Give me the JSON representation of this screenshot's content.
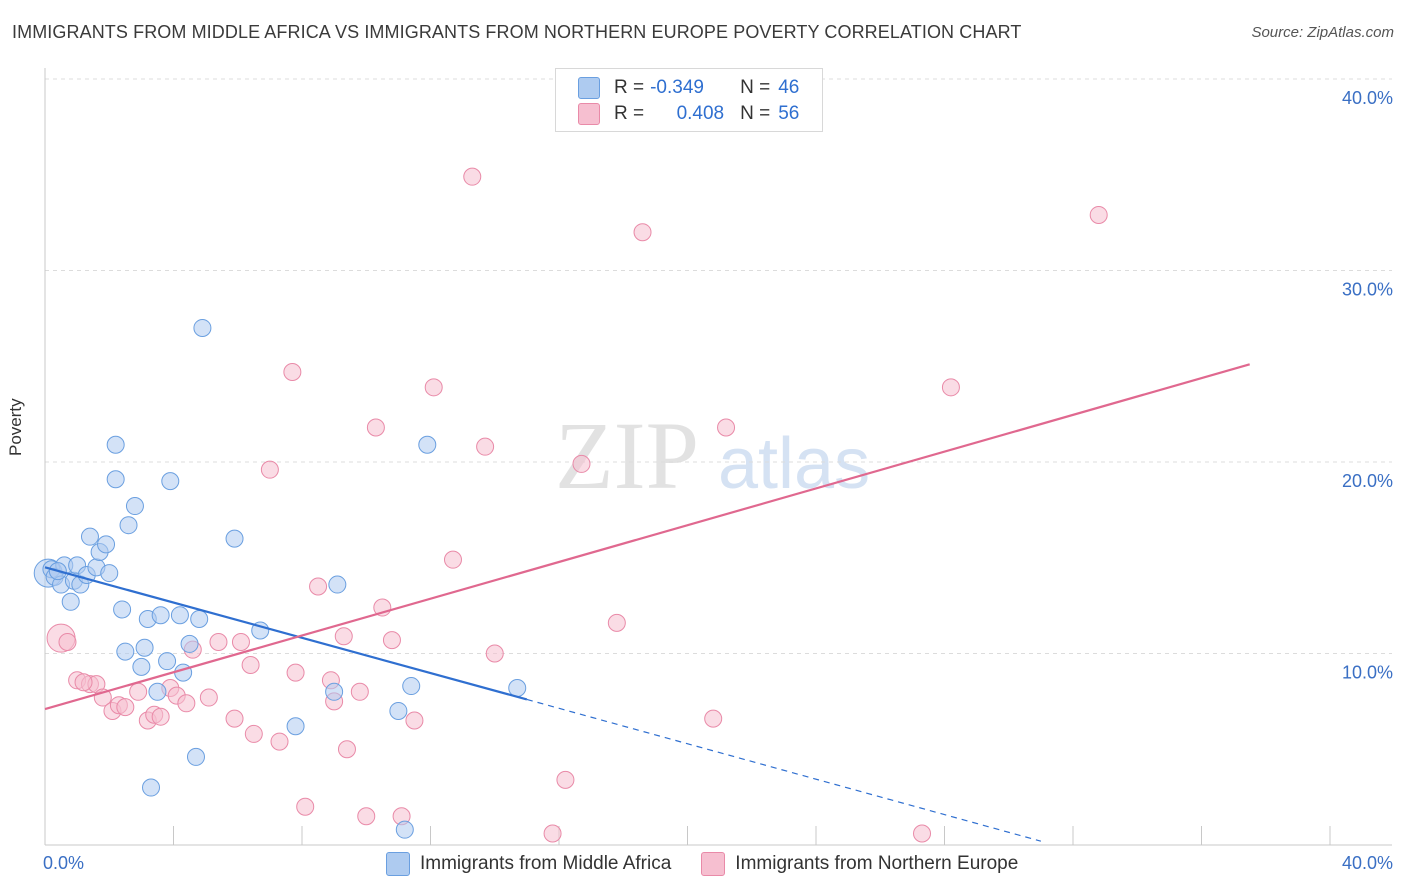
{
  "header": {
    "title": "IMMIGRANTS FROM MIDDLE AFRICA VS IMMIGRANTS FROM NORTHERN EUROPE POVERTY CORRELATION CHART",
    "source": "Source: ZipAtlas.com"
  },
  "watermark": {
    "zip": "ZIP",
    "atlas": "atlas"
  },
  "stats": {
    "r_label": "R =",
    "n_label": "N =",
    "rows": [
      {
        "r": "-0.349",
        "n": "46"
      },
      {
        "r": "0.408",
        "n": "56"
      }
    ]
  },
  "colors": {
    "blue_fill": "#aecbf0",
    "blue_stroke": "#6a9fe0",
    "blue_line": "#2f6fd0",
    "pink_fill": "#f6bfd0",
    "pink_stroke": "#e98aa8",
    "pink_line": "#e0688f",
    "axis_text": "#3a6fc4"
  },
  "chart_data": {
    "type": "scatter",
    "title": "IMMIGRANTS FROM MIDDLE AFRICA VS IMMIGRANTS FROM NORTHERN EUROPE POVERTY CORRELATION CHART",
    "xlabel": "",
    "ylabel": "Poverty",
    "xlim": [
      0,
      40
    ],
    "ylim": [
      0,
      40
    ],
    "x_tick_labels": [
      "0.0%",
      "40.0%"
    ],
    "y_ticks": [
      {
        "value": 10,
        "label": "10.0%"
      },
      {
        "value": 20,
        "label": "20.0%"
      },
      {
        "value": 30,
        "label": "30.0%"
      },
      {
        "value": 40,
        "label": "40.0%"
      }
    ],
    "legend": "bottom-center",
    "series": [
      {
        "name": "Immigrants from Middle Africa",
        "color": "#6a9fe0",
        "trend": {
          "x0": 0,
          "y0": 14.5,
          "x1": 15.0,
          "y1": 7.6,
          "dashed_to_x": 31.0,
          "dashed_to_y": 0.2
        },
        "points": [
          [
            0.1,
            14.2,
            3
          ],
          [
            0.2,
            14.4,
            1
          ],
          [
            0.3,
            14.0,
            1
          ],
          [
            0.5,
            13.6,
            1
          ],
          [
            0.6,
            14.6,
            1
          ],
          [
            0.8,
            12.7,
            1
          ],
          [
            0.9,
            13.8,
            1
          ],
          [
            1.0,
            14.6,
            1
          ],
          [
            1.1,
            13.6,
            1
          ],
          [
            1.3,
            14.1,
            1
          ],
          [
            1.4,
            16.1,
            1
          ],
          [
            1.6,
            14.5,
            1
          ],
          [
            1.7,
            15.3,
            1
          ],
          [
            1.9,
            15.7,
            1
          ],
          [
            2.0,
            14.2,
            1
          ],
          [
            2.2,
            20.9,
            1
          ],
          [
            2.2,
            19.1,
            1
          ],
          [
            2.4,
            12.3,
            1
          ],
          [
            2.5,
            10.1,
            1
          ],
          [
            2.6,
            16.7,
            1
          ],
          [
            2.8,
            17.7,
            1
          ],
          [
            3.0,
            9.3,
            1
          ],
          [
            3.1,
            10.3,
            1
          ],
          [
            3.2,
            11.8,
            1
          ],
          [
            3.3,
            3.0,
            1
          ],
          [
            3.5,
            8.0,
            1
          ],
          [
            3.6,
            12.0,
            1
          ],
          [
            3.8,
            9.6,
            1
          ],
          [
            3.9,
            19.0,
            1
          ],
          [
            4.2,
            12.0,
            1
          ],
          [
            4.3,
            9.0,
            1
          ],
          [
            4.5,
            10.5,
            1
          ],
          [
            4.7,
            4.6,
            1
          ],
          [
            4.8,
            11.8,
            1
          ],
          [
            4.9,
            27.0,
            1
          ],
          [
            5.9,
            16.0,
            1
          ],
          [
            6.7,
            11.2,
            1
          ],
          [
            7.8,
            6.2,
            1
          ],
          [
            9.0,
            8.0,
            1
          ],
          [
            9.1,
            13.6,
            1
          ],
          [
            11.0,
            7.0,
            1
          ],
          [
            11.2,
            0.8,
            1
          ],
          [
            11.4,
            8.3,
            1
          ],
          [
            11.9,
            20.9,
            1
          ],
          [
            14.7,
            8.2,
            1
          ],
          [
            0.4,
            14.3,
            1
          ]
        ]
      },
      {
        "name": "Immigrants from Northern Europe",
        "color": "#e98aa8",
        "trend": {
          "x0": 0,
          "y0": 7.1,
          "x1": 37.5,
          "y1": 25.1
        },
        "points": [
          [
            0.5,
            10.8,
            3
          ],
          [
            0.7,
            10.6,
            1
          ],
          [
            1.0,
            8.6,
            1
          ],
          [
            1.4,
            8.4,
            1
          ],
          [
            1.6,
            8.4,
            1
          ],
          [
            1.8,
            7.7,
            1
          ],
          [
            2.1,
            7.0,
            1
          ],
          [
            2.3,
            7.3,
            1
          ],
          [
            2.5,
            7.2,
            1
          ],
          [
            2.9,
            8.0,
            1
          ],
          [
            3.2,
            6.5,
            1
          ],
          [
            3.4,
            6.8,
            1
          ],
          [
            3.6,
            6.7,
            1
          ],
          [
            3.9,
            8.2,
            1
          ],
          [
            4.1,
            7.8,
            1
          ],
          [
            4.4,
            7.4,
            1
          ],
          [
            4.6,
            10.2,
            1
          ],
          [
            5.1,
            7.7,
            1
          ],
          [
            5.4,
            10.6,
            1
          ],
          [
            5.9,
            6.6,
            1
          ],
          [
            6.1,
            10.6,
            1
          ],
          [
            6.4,
            9.4,
            1
          ],
          [
            6.5,
            5.8,
            1
          ],
          [
            7.0,
            19.6,
            1
          ],
          [
            7.3,
            5.4,
            1
          ],
          [
            7.7,
            24.7,
            1
          ],
          [
            7.8,
            9.0,
            1
          ],
          [
            8.1,
            2.0,
            1
          ],
          [
            8.5,
            13.5,
            1
          ],
          [
            8.9,
            8.6,
            1
          ],
          [
            9.0,
            7.5,
            1
          ],
          [
            9.3,
            10.9,
            1
          ],
          [
            9.4,
            5.0,
            1
          ],
          [
            9.8,
            8.0,
            1
          ],
          [
            10.0,
            1.5,
            1
          ],
          [
            10.3,
            21.8,
            1
          ],
          [
            10.5,
            12.4,
            1
          ],
          [
            10.8,
            10.7,
            1
          ],
          [
            11.1,
            1.5,
            1
          ],
          [
            11.5,
            6.5,
            1
          ],
          [
            12.1,
            23.9,
            1
          ],
          [
            12.7,
            14.9,
            1
          ],
          [
            13.3,
            34.9,
            1
          ],
          [
            13.7,
            20.8,
            1
          ],
          [
            14.0,
            10.0,
            1
          ],
          [
            15.8,
            0.6,
            1
          ],
          [
            16.2,
            3.4,
            1
          ],
          [
            16.7,
            19.9,
            1
          ],
          [
            17.8,
            11.6,
            1
          ],
          [
            18.6,
            32.0,
            1
          ],
          [
            20.8,
            6.6,
            1
          ],
          [
            21.2,
            21.8,
            1
          ],
          [
            27.3,
            0.6,
            1
          ],
          [
            28.2,
            23.9,
            1
          ],
          [
            32.8,
            32.9,
            1
          ],
          [
            1.2,
            8.5,
            1
          ]
        ]
      }
    ]
  }
}
